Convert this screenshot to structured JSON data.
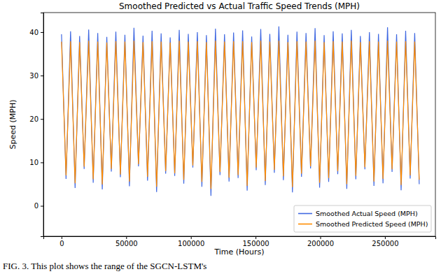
{
  "chart_data": {
    "type": "line",
    "title": "Smoothed Predicted vs Actual Traffic Speed Trends (MPH)",
    "x_label": "Time (Hours)",
    "y_label": "Speed (MPH)",
    "annotations": [
      "FIG. 3. This plot shows the range of the SGCN-LSTM's"
    ],
    "x": [
      0,
      3500,
      7000,
      10500,
      14000,
      17500,
      21000,
      24500,
      28000,
      31500,
      35000,
      38500,
      42000,
      45500,
      49000,
      52500,
      56000,
      59500,
      63000,
      66500,
      70000,
      73500,
      77000,
      80500,
      84000,
      87500,
      91000,
      94500,
      98000,
      101500,
      105000,
      108500,
      112000,
      115500,
      119000,
      122500,
      126000,
      129500,
      133000,
      136500,
      140000,
      143500,
      147000,
      150500,
      154000,
      157500,
      161000,
      164500,
      168000,
      171500,
      175000,
      178500,
      182000,
      185500,
      189000,
      192500,
      196000,
      199500,
      203000,
      206500,
      210000,
      213500,
      217000,
      220500,
      224000,
      227500,
      231000,
      234500,
      238000,
      241500,
      245000,
      248500,
      252000,
      255500,
      259000,
      262500,
      266000,
      269500,
      273000,
      276500
    ],
    "series": [
      {
        "name": "Smoothed Actual Speed (MPH)",
        "color": "#4169e1",
        "values": [
          39.5,
          6.2,
          40.2,
          4.1,
          39.1,
          8.5,
          40.6,
          5.3,
          39.8,
          3.8,
          38.9,
          7.9,
          40.1,
          6.6,
          39.4,
          4.5,
          41.0,
          9.1,
          39.2,
          5.8,
          40.3,
          3.2,
          39.7,
          7.4,
          38.8,
          6.9,
          40.5,
          5.1,
          39.6,
          8.8,
          40.0,
          4.4,
          39.3,
          2.3,
          40.8,
          7.1,
          39.5,
          5.6,
          39.9,
          6.4,
          40.4,
          3.5,
          39.0,
          8.2,
          40.7,
          4.8,
          39.6,
          7.6,
          41.3,
          5.9,
          39.4,
          3.1,
          40.1,
          6.7,
          39.8,
          8.6,
          40.9,
          4.2,
          39.3,
          5.5,
          40.2,
          7.3,
          39.7,
          3.9,
          40.5,
          6.1,
          39.1,
          8.4,
          40.0,
          4.6,
          39.6,
          5.2,
          41.1,
          7.8,
          39.5,
          3.6,
          40.3,
          6.3,
          39.8,
          5.0
        ]
      },
      {
        "name": "Smoothed Predicted Speed (MPH)",
        "color": "#ff8c00",
        "values": [
          37.8,
          7.0,
          37.9,
          5.2,
          37.7,
          9.0,
          38.0,
          6.1,
          37.8,
          4.9,
          37.6,
          8.5,
          37.9,
          7.2,
          37.8,
          5.6,
          38.0,
          9.6,
          37.7,
          6.7,
          37.9,
          4.4,
          37.8,
          8.0,
          37.6,
          7.5,
          38.0,
          6.0,
          37.8,
          9.3,
          37.9,
          5.5,
          37.7,
          3.9,
          38.0,
          7.8,
          37.8,
          6.5,
          37.9,
          7.1,
          37.9,
          4.6,
          37.7,
          8.8,
          38.0,
          5.7,
          37.8,
          8.3,
          38.0,
          6.8,
          37.7,
          4.3,
          37.9,
          7.4,
          37.8,
          9.1,
          38.0,
          5.3,
          37.7,
          6.4,
          37.9,
          8.0,
          37.8,
          5.0,
          38.0,
          6.9,
          37.7,
          8.9,
          37.9,
          5.6,
          37.8,
          6.2,
          38.0,
          8.4,
          37.8,
          4.8,
          37.9,
          7.0,
          37.8,
          6.0
        ]
      }
    ],
    "xlim": [
      -14000,
      289000
    ],
    "ylim": [
      -7,
      44.5
    ],
    "xticks": [
      0,
      50000,
      100000,
      150000,
      200000,
      250000
    ],
    "yticks": [
      0,
      10,
      20,
      30,
      40
    ],
    "grid": false,
    "legend": "lower right"
  }
}
